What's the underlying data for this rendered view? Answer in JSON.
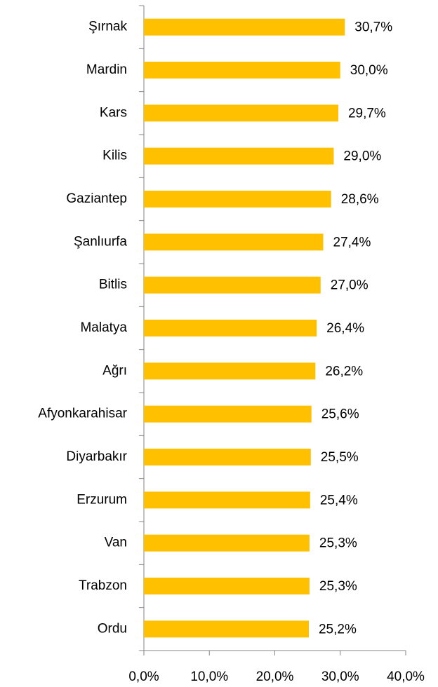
{
  "chart_data": {
    "type": "bar",
    "orientation": "horizontal",
    "categories": [
      "Şırnak",
      "Mardin",
      "Kars",
      "Kilis",
      "Gaziantep",
      "Şanlıurfa",
      "Bitlis",
      "Malatya",
      "Ağrı",
      "Afyonkarahisar",
      "Diyarbakır",
      "Erzurum",
      "Van",
      "Trabzon",
      "Ordu"
    ],
    "values": [
      30.7,
      30.0,
      29.7,
      29.0,
      28.6,
      27.4,
      27.0,
      26.4,
      26.2,
      25.6,
      25.5,
      25.4,
      25.3,
      25.3,
      25.2
    ],
    "value_labels": [
      "30,7%",
      "30,0%",
      "29,7%",
      "29,0%",
      "28,6%",
      "27,4%",
      "27,0%",
      "26,4%",
      "26,2%",
      "25,6%",
      "25,5%",
      "25,4%",
      "25,3%",
      "25,3%",
      "25,2%"
    ],
    "color": "#ffc000",
    "xlim": [
      0,
      40
    ],
    "xticks": [
      {
        "value": 0,
        "label": "0,0%"
      },
      {
        "value": 10,
        "label": "10,0%"
      },
      {
        "value": 20,
        "label": "20,0%"
      },
      {
        "value": 30,
        "label": "30,0%"
      },
      {
        "value": 40,
        "label": "40,0%"
      }
    ],
    "grid": false
  }
}
